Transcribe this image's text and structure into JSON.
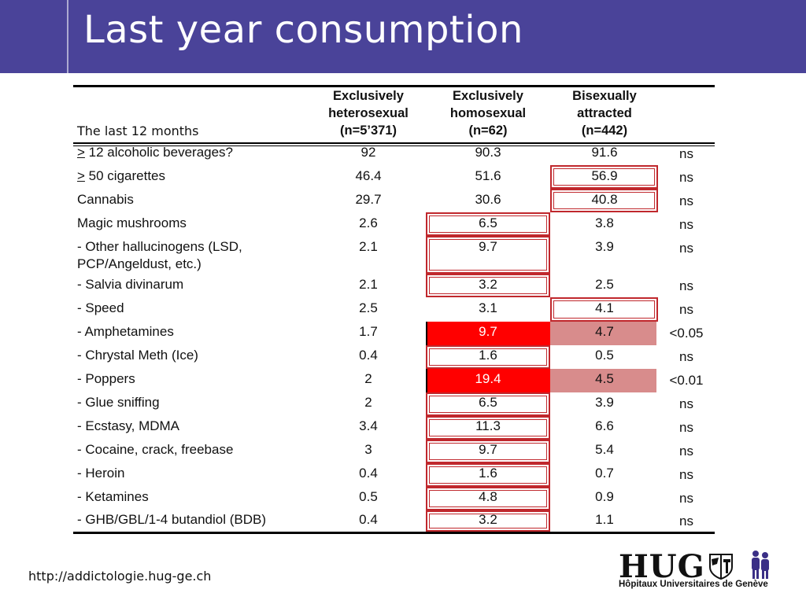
{
  "slide": {
    "title": "Last year consumption",
    "footer_url": "http://addictologie.hug-ge.ch"
  },
  "table": {
    "left_header": "The last 12 months",
    "columns": [
      {
        "line1": "Exclusively",
        "line2": "heterosexual",
        "line3": "(n=5’371)"
      },
      {
        "line1": "Exclusively",
        "line2": "homosexual",
        "line3": "(n=62)"
      },
      {
        "line1": "Bisexually",
        "line2": "attracted",
        "line3": "(n=442)"
      }
    ],
    "rows": [
      {
        "label": "> 12 alcoholic beverages?",
        "het": "92",
        "hom": "90.3",
        "bi": "91.6",
        "sig": "ns"
      },
      {
        "label": "> 50 cigarettes",
        "het": "46.4",
        "hom": "51.6",
        "bi": "56.9",
        "sig": "ns"
      },
      {
        "label": "Cannabis",
        "het": "29.7",
        "hom": "30.6",
        "bi": "40.8",
        "sig": "ns"
      },
      {
        "label": "Magic mushrooms",
        "het": "2.6",
        "hom": "6.5",
        "bi": "3.8",
        "sig": "ns"
      },
      {
        "label_line1": "- Other hallucinogens (LSD,",
        "label_line2": "PCP/Angeldust, etc.)",
        "het": "2.1",
        "hom": "9.7",
        "bi": "3.9",
        "sig": "ns"
      },
      {
        "label": "- Salvia divinarum",
        "het": "2.1",
        "hom": "3.2",
        "bi": "2.5",
        "sig": "ns"
      },
      {
        "label": "- Speed",
        "het": "2.5",
        "hom": "3.1",
        "bi": "4.1",
        "sig": "ns"
      },
      {
        "label": "- Amphetamines",
        "het": "1.7",
        "hom": "9.7",
        "bi": "4.7",
        "sig": "<0.05"
      },
      {
        "label": "- Chrystal Meth (Ice)",
        "het": "0.4",
        "hom": "1.6",
        "bi": "0.5",
        "sig": "ns"
      },
      {
        "label": "- Poppers",
        "het": "2",
        "hom": "19.4",
        "bi": "4.5",
        "sig": "<0.01"
      },
      {
        "label": "- Glue sniffing",
        "het": "2",
        "hom": "6.5",
        "bi": "3.9",
        "sig": "ns"
      },
      {
        "label": "- Ecstasy, MDMA",
        "het": "3.4",
        "hom": "11.3",
        "bi": "6.6",
        "sig": "ns"
      },
      {
        "label": "- Cocaine, crack, freebase",
        "het": "3",
        "hom": "9.7",
        "bi": "5.4",
        "sig": "ns"
      },
      {
        "label": "- Heroin",
        "het": "0.4",
        "hom": "1.6",
        "bi": "0.7",
        "sig": "ns"
      },
      {
        "label": "- Ketamines",
        "het": "0.5",
        "hom": "4.8",
        "bi": "0.9",
        "sig": "ns"
      },
      {
        "label": "- GHB/GBL/1-4 butandiol (BDB)",
        "het": "0.4",
        "hom": "3.2",
        "bi": "1.1",
        "sig": "ns"
      }
    ]
  },
  "logo": {
    "name": "HUG",
    "subtitle": "Hôpitaux Universitaires de Genève"
  },
  "colors": {
    "title_bar": "#4a4399",
    "highlight_red": "#ff0000",
    "highlight_pink": "#d88c8c",
    "box_border": "#c0282d"
  }
}
